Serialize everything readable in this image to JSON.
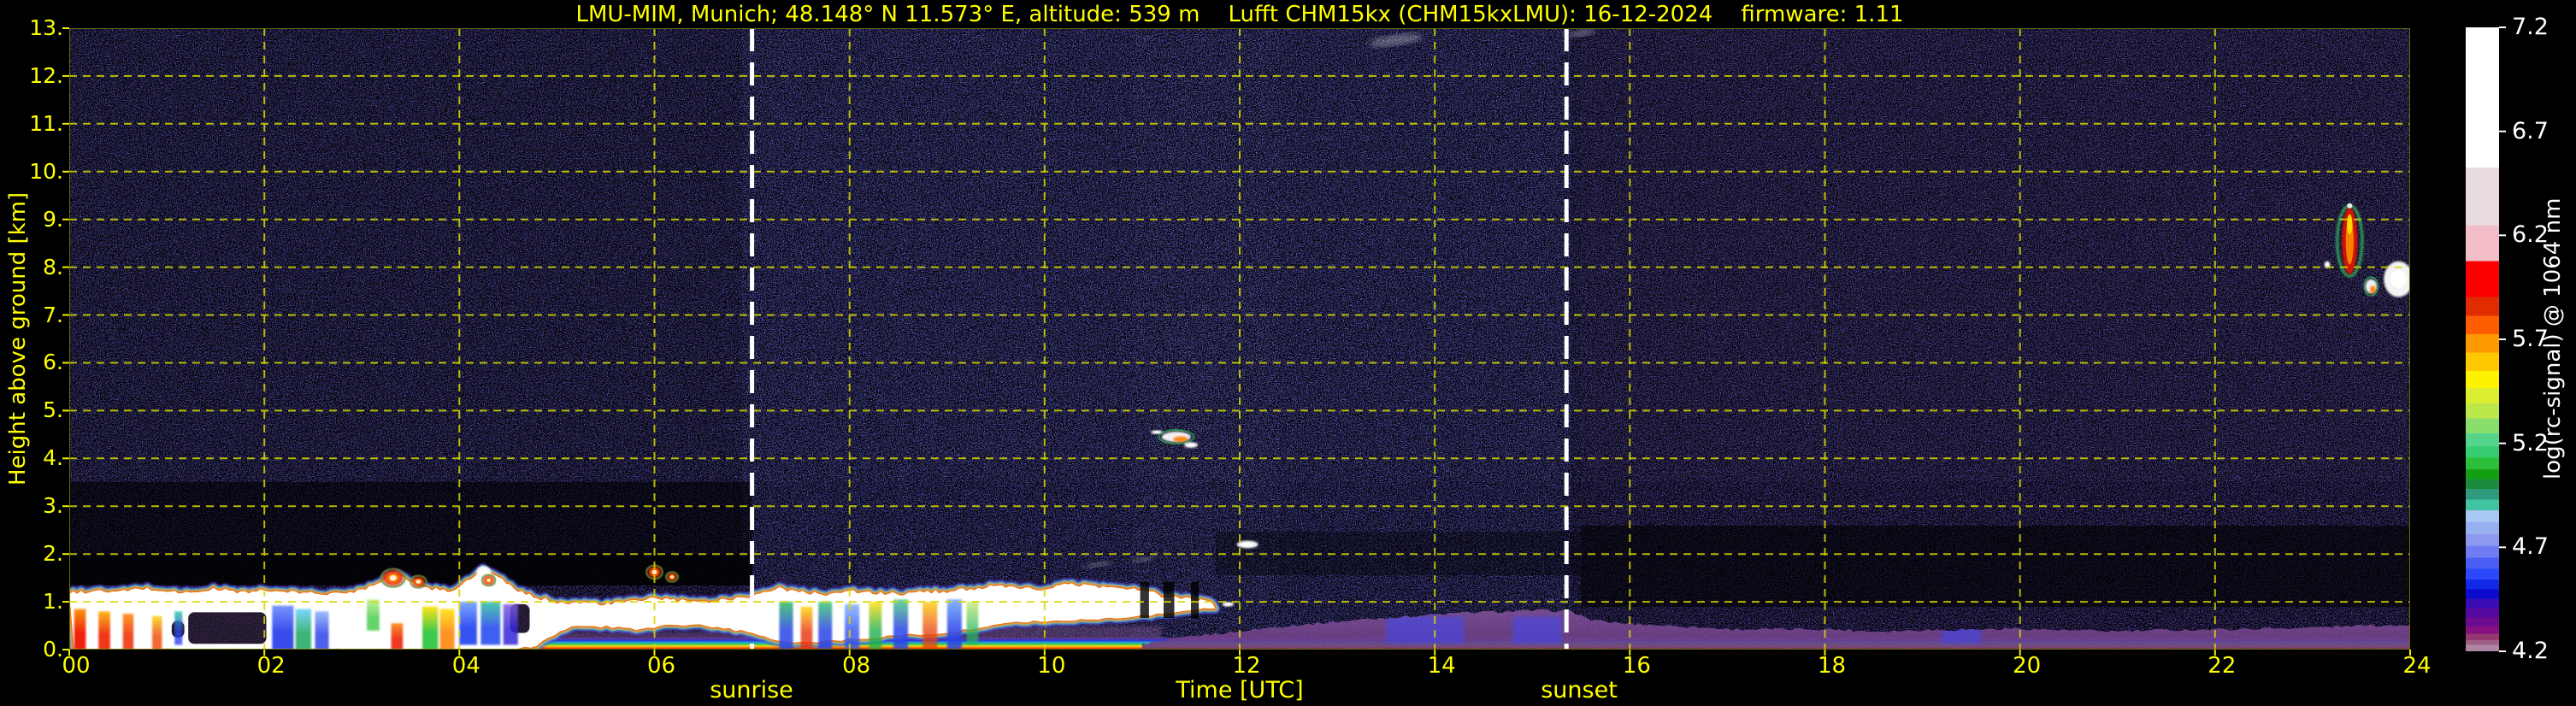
{
  "header": {
    "title": "LMU-MIM, Munich; 48.148° N 11.573° E, altitude: 539 m    Lufft CHM15kx (CHM15kxLMU): 16-12-2024    firmware: 1.11"
  },
  "axes": {
    "xlabel": "Time [UTC]",
    "ylabel": "Height above ground [km]",
    "sunrise_label": "sunrise",
    "sunset_label": "sunset"
  },
  "colorbar": {
    "label": "log(rc-signal) @ 1064 nm",
    "tick_labels": [
      "7.2",
      "6.7",
      "6.2",
      "5.7",
      "5.2",
      "4.7",
      "4.2"
    ],
    "tick_values": [
      7.2,
      6.7,
      6.2,
      5.7,
      5.2,
      4.7,
      4.2
    ],
    "range": [
      4.2,
      7.2
    ],
    "bands": [
      {
        "to": 0.225,
        "color": "#ffffff"
      },
      {
        "to": 0.317,
        "color": "#e9dce0"
      },
      {
        "to": 0.375,
        "color": "#f3bdc8"
      },
      {
        "to": 0.432,
        "color": "#fb0000"
      },
      {
        "to": 0.462,
        "color": "#e12c00"
      },
      {
        "to": 0.492,
        "color": "#ff5e00"
      },
      {
        "to": 0.521,
        "color": "#ff9900"
      },
      {
        "to": 0.551,
        "color": "#ffc800"
      },
      {
        "to": 0.578,
        "color": "#fdf200"
      },
      {
        "to": 0.603,
        "color": "#dcee32"
      },
      {
        "to": 0.627,
        "color": "#bce84b"
      },
      {
        "to": 0.651,
        "color": "#8ade6e"
      },
      {
        "to": 0.672,
        "color": "#55d48c"
      },
      {
        "to": 0.69,
        "color": "#35cd70"
      },
      {
        "to": 0.708,
        "color": "#2bbf3a"
      },
      {
        "to": 0.724,
        "color": "#12a012"
      },
      {
        "to": 0.74,
        "color": "#1a8c3c"
      },
      {
        "to": 0.757,
        "color": "#2f9a7d"
      },
      {
        "to": 0.774,
        "color": "#41c4a1"
      },
      {
        "to": 0.793,
        "color": "#a6c8f2"
      },
      {
        "to": 0.812,
        "color": "#97b0f2"
      },
      {
        "to": 0.831,
        "color": "#8d98f0"
      },
      {
        "to": 0.85,
        "color": "#6e7ef2"
      },
      {
        "to": 0.868,
        "color": "#4a5ef5"
      },
      {
        "to": 0.885,
        "color": "#2b48fa"
      },
      {
        "to": 0.901,
        "color": "#1228e8"
      },
      {
        "to": 0.916,
        "color": "#0b0bcd"
      },
      {
        "to": 0.931,
        "color": "#3a0cb4"
      },
      {
        "to": 0.946,
        "color": "#540a9e"
      },
      {
        "to": 0.96,
        "color": "#6d0b91"
      },
      {
        "to": 0.972,
        "color": "#85107e"
      },
      {
        "to": 0.982,
        "color": "#95386f"
      },
      {
        "to": 0.99,
        "color": "#a05e85"
      },
      {
        "to": 1.0,
        "color": "#ad86a6"
      }
    ]
  },
  "chart_data": {
    "type": "heatmap",
    "title": "LMU-MIM, Munich; 48.148° N 11.573° E, altitude: 539 m    Lufft CHM15kx (CHM15kxLMU): 16-12-2024    firmware: 1.11",
    "xlabel": "Time [UTC]",
    "ylabel": "Height above ground [km]",
    "colorbar_label": "log(rc-signal) @ 1064 nm",
    "xlim": [
      0,
      24
    ],
    "ylim": [
      0,
      13
    ],
    "grid": true,
    "grid_color": "#d8d800",
    "text_color": "#ffff00",
    "xtick_values": [
      0,
      2,
      4,
      6,
      8,
      10,
      12,
      14,
      16,
      18,
      20,
      22,
      24
    ],
    "xtick_labels": [
      "00",
      "02",
      "04",
      "06",
      "08",
      "10",
      "12",
      "14",
      "16",
      "18",
      "20",
      "22",
      "24"
    ],
    "ytick_values": [
      0,
      1,
      2,
      3,
      4,
      5,
      6,
      7,
      8,
      9,
      10,
      11,
      12,
      13
    ],
    "ytick_labels": [
      "0.",
      "1.",
      "2.",
      "3.",
      "4.",
      "5.",
      "6.",
      "7.",
      "8.",
      "9.",
      "10.",
      "11.",
      "12.",
      "13."
    ],
    "sunrise_time_utc": 7.0,
    "sunset_time_utc": 15.35,
    "boundary_layer": {
      "description": "White high-backscatter mixed layer from 00:00 until ~11:45 UTC, top 0.9-1.7 km, rainbow fringe",
      "top_km": [
        [
          0,
          1.18
        ],
        [
          0.25,
          1.22
        ],
        [
          0.5,
          1.2
        ],
        [
          0.75,
          1.28
        ],
        [
          1,
          1.22
        ],
        [
          1.25,
          1.18
        ],
        [
          1.5,
          1.27
        ],
        [
          1.75,
          1.2
        ],
        [
          2,
          1.23
        ],
        [
          2.25,
          1.2
        ],
        [
          2.5,
          1.18
        ],
        [
          2.75,
          1.16
        ],
        [
          3,
          1.25
        ],
        [
          3.2,
          1.45
        ],
        [
          3.35,
          1.6
        ],
        [
          3.5,
          1.4
        ],
        [
          3.7,
          1.28
        ],
        [
          3.9,
          1.22
        ],
        [
          4.1,
          1.45
        ],
        [
          4.25,
          1.68
        ],
        [
          4.4,
          1.5
        ],
        [
          4.6,
          1.22
        ],
        [
          4.8,
          1.08
        ],
        [
          5,
          1.0
        ],
        [
          5.25,
          0.97
        ],
        [
          5.5,
          0.95
        ],
        [
          5.75,
          1.0
        ],
        [
          6,
          1.08
        ],
        [
          6.25,
          1.02
        ],
        [
          6.5,
          0.99
        ],
        [
          6.75,
          1.05
        ],
        [
          7,
          1.12
        ],
        [
          7.25,
          1.28
        ],
        [
          7.5,
          1.2
        ],
        [
          7.75,
          1.16
        ],
        [
          8,
          1.22
        ],
        [
          8.25,
          1.18
        ],
        [
          8.5,
          1.16
        ],
        [
          8.75,
          1.2
        ],
        [
          9,
          1.22
        ],
        [
          9.25,
          1.27
        ],
        [
          9.5,
          1.32
        ],
        [
          9.75,
          1.28
        ],
        [
          10,
          1.26
        ],
        [
          10.25,
          1.37
        ],
        [
          10.5,
          1.33
        ],
        [
          10.75,
          1.28
        ],
        [
          11,
          1.26
        ],
        [
          11.2,
          1.12
        ],
        [
          11.4,
          1.08
        ],
        [
          11.6,
          1.02
        ],
        [
          11.75,
          0.95
        ]
      ],
      "bottom_km": [
        [
          0,
          0
        ],
        [
          4.6,
          0
        ],
        [
          4.8,
          0.1
        ],
        [
          5,
          0.35
        ],
        [
          5.2,
          0.5
        ],
        [
          5.5,
          0.48
        ],
        [
          5.8,
          0.42
        ],
        [
          6.1,
          0.5
        ],
        [
          6.4,
          0.52
        ],
        [
          6.7,
          0.45
        ],
        [
          7,
          0.35
        ],
        [
          7.2,
          0.2
        ],
        [
          7.5,
          0.15
        ],
        [
          8,
          0.2
        ],
        [
          8.5,
          0.3
        ],
        [
          9,
          0.35
        ],
        [
          9.3,
          0.45
        ],
        [
          9.6,
          0.55
        ],
        [
          10,
          0.6
        ],
        [
          10.4,
          0.62
        ],
        [
          10.8,
          0.68
        ],
        [
          11.1,
          0.72
        ],
        [
          11.4,
          0.8
        ],
        [
          11.75,
          0.88
        ]
      ],
      "gaps": [
        [
          10.98,
          11.07
        ],
        [
          11.22,
          11.33
        ],
        [
          11.5,
          11.58
        ]
      ],
      "dark_patches": [
        [
          1.22,
          2.02,
          0.12,
          0.78
        ],
        [
          1.05,
          1.18,
          0.25,
          0.6
        ],
        [
          4.52,
          4.72,
          0.35,
          0.95
        ]
      ],
      "streaks": [
        [
          0.05,
          0.17,
          0,
          0.85,
          "#ee1600",
          "#ff9000",
          0.95
        ],
        [
          0.3,
          0.42,
          0,
          0.8,
          "#ee2400",
          "#ffb000",
          0.9
        ],
        [
          0.55,
          0.66,
          0,
          0.75,
          "#ee2a00",
          "#ff8800",
          0.85
        ],
        [
          0.85,
          0.95,
          0,
          0.7,
          "#f04400",
          "#ffd000",
          0.8
        ],
        [
          1.08,
          1.16,
          0.1,
          0.8,
          "#2a44e8",
          "#27c8a0",
          0.8
        ],
        [
          2.08,
          2.3,
          0,
          0.92,
          "#2438e8",
          "#6a8cff",
          0.9
        ],
        [
          2.32,
          2.48,
          0,
          0.85,
          "#1ea860",
          "#66d0ff",
          0.85
        ],
        [
          2.52,
          2.66,
          0,
          0.8,
          "#2438e8",
          "#88aaff",
          0.8
        ],
        [
          3.05,
          3.18,
          0.4,
          1.05,
          "#27c32f",
          "#aef06e",
          0.7
        ],
        [
          3.3,
          3.42,
          0,
          0.55,
          "#ee1600",
          "#ff8000",
          0.85
        ],
        [
          3.62,
          3.78,
          0,
          0.9,
          "#28c43a",
          "#ffe000",
          0.9
        ],
        [
          3.8,
          3.95,
          0,
          0.85,
          "#ff8000",
          "#ffe000",
          0.85
        ],
        [
          4.0,
          4.18,
          0.1,
          1.0,
          "#2040f0",
          "#70a0ff",
          0.9
        ],
        [
          4.22,
          4.42,
          0.1,
          1.0,
          "#2c50f0",
          "#3cc8a0",
          0.9
        ],
        [
          4.45,
          4.6,
          0.1,
          0.95,
          "#3828d8",
          "#8060e0",
          0.85
        ],
        [
          7.28,
          7.42,
          0,
          1.0,
          "#2a44e8",
          "#30c060",
          0.85
        ],
        [
          7.5,
          7.62,
          0,
          0.9,
          "#e83010",
          "#ffd800",
          0.8
        ],
        [
          7.68,
          7.82,
          0,
          1.0,
          "#2a44e8",
          "#40cc70",
          0.85
        ],
        [
          7.95,
          8.1,
          0,
          0.95,
          "#3050f0",
          "#80b0ff",
          0.8
        ],
        [
          8.2,
          8.33,
          0,
          1.0,
          "#20b050",
          "#ffe000",
          0.8
        ],
        [
          8.45,
          8.6,
          0,
          1.05,
          "#2a44e8",
          "#50d080",
          0.85
        ],
        [
          8.75,
          8.9,
          0,
          1.0,
          "#e84010",
          "#ffcc00",
          0.75
        ],
        [
          9.0,
          9.15,
          0,
          1.05,
          "#2a44e8",
          "#70a8ff",
          0.85
        ],
        [
          9.2,
          9.32,
          0.1,
          1.0,
          "#28b858",
          "#c0e860",
          0.7
        ]
      ]
    },
    "haze_top_km": [
      [
        11,
        0.12
      ],
      [
        11.3,
        0.2
      ],
      [
        11.6,
        0.3
      ],
      [
        12,
        0.38
      ],
      [
        12.4,
        0.48
      ],
      [
        12.8,
        0.55
      ],
      [
        13.2,
        0.62
      ],
      [
        13.6,
        0.68
      ],
      [
        14,
        0.73
      ],
      [
        14.4,
        0.78
      ],
      [
        14.8,
        0.8
      ],
      [
        15.1,
        0.82
      ],
      [
        15.4,
        0.8
      ],
      [
        15.6,
        0.62
      ],
      [
        15.9,
        0.55
      ],
      [
        16.2,
        0.52
      ],
      [
        16.6,
        0.48
      ],
      [
        17,
        0.43
      ],
      [
        17.5,
        0.42
      ],
      [
        18,
        0.43
      ],
      [
        18.5,
        0.38
      ],
      [
        19,
        0.41
      ],
      [
        19.5,
        0.42
      ],
      [
        20,
        0.44
      ],
      [
        20.5,
        0.4
      ],
      [
        21,
        0.38
      ],
      [
        21.5,
        0.41
      ],
      [
        22,
        0.42
      ],
      [
        22.5,
        0.44
      ],
      [
        23,
        0.46
      ],
      [
        23.5,
        0.5
      ],
      [
        24,
        0.52
      ]
    ],
    "clouds": [
      {
        "t": 3.32,
        "km": 1.5,
        "wt": 0.18,
        "hkm": 0.3,
        "type": "warm"
      },
      {
        "t": 3.58,
        "km": 1.42,
        "wt": 0.12,
        "hkm": 0.2,
        "type": "warm"
      },
      {
        "t": 4.25,
        "km": 1.62,
        "wt": 0.15,
        "hkm": 0.26,
        "type": "white"
      },
      {
        "t": 4.3,
        "km": 1.45,
        "wt": 0.1,
        "hkm": 0.18,
        "type": "warm"
      },
      {
        "t": 6.0,
        "km": 1.62,
        "wt": 0.12,
        "hkm": 0.22,
        "type": "warm"
      },
      {
        "t": 6.18,
        "km": 1.52,
        "wt": 0.09,
        "hkm": 0.16,
        "type": "warm"
      },
      {
        "t": 10.55,
        "km": 1.78,
        "wt": 0.3,
        "hkm": 0.1,
        "type": "faint"
      },
      {
        "t": 11.0,
        "km": 1.88,
        "wt": 0.25,
        "hkm": 0.09,
        "type": "faint"
      },
      {
        "t": 11.15,
        "km": 4.55,
        "wt": 0.12,
        "hkm": 0.08,
        "type": "white"
      },
      {
        "t": 11.35,
        "km": 4.45,
        "wt": 0.3,
        "hkm": 0.22,
        "type": "mixed"
      },
      {
        "t": 11.5,
        "km": 4.28,
        "wt": 0.14,
        "hkm": 0.12,
        "type": "white"
      },
      {
        "t": 11.88,
        "km": 0.95,
        "wt": 0.12,
        "hkm": 0.1,
        "type": "white"
      },
      {
        "t": 12.08,
        "km": 2.2,
        "wt": 0.22,
        "hkm": 0.16,
        "type": "white"
      },
      {
        "t": 13.6,
        "km": 12.75,
        "wt": 0.55,
        "hkm": 0.22,
        "type": "faint"
      },
      {
        "t": 15.5,
        "km": 12.9,
        "wt": 0.3,
        "hkm": 0.14,
        "type": "faint"
      },
      {
        "t": 23.15,
        "km": 8.05,
        "wt": 0.06,
        "hkm": 0.15,
        "type": "white"
      },
      {
        "t": 23.38,
        "km": 8.55,
        "wt": 0.16,
        "hkm": 1.4,
        "type": "virga"
      },
      {
        "t": 23.6,
        "km": 7.6,
        "wt": 0.12,
        "hkm": 0.3,
        "type": "mixed"
      },
      {
        "t": 23.88,
        "km": 7.75,
        "wt": 0.3,
        "hkm": 0.75,
        "type": "white"
      }
    ]
  }
}
